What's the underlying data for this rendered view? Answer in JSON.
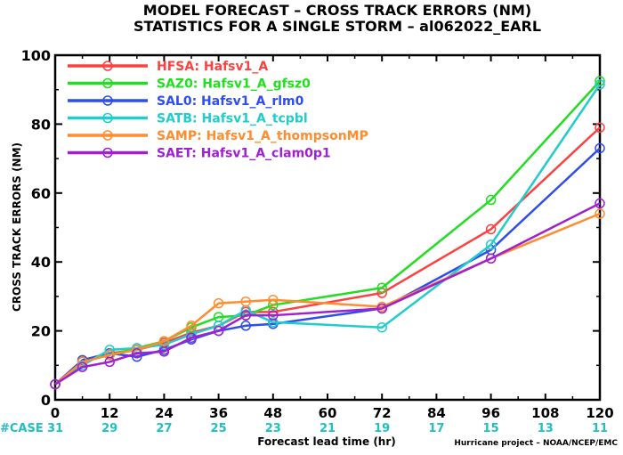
{
  "chart_data": {
    "type": "line",
    "title": "MODEL FORECAST – CROSS TRACK ERRORS (NM)",
    "subtitle": "STATISTICS FOR A SINGLE STORM – al062022_EARL",
    "xlabel": "Forecast lead time (hr)",
    "ylabel": "CROSS TRACK ERRORS (NM)",
    "xlim": [
      0,
      120
    ],
    "ylim": [
      0,
      100
    ],
    "x_ticks": [
      0,
      12,
      24,
      36,
      48,
      60,
      72,
      84,
      96,
      108,
      120
    ],
    "y_ticks": [
      0,
      20,
      40,
      60,
      80,
      100
    ],
    "grid": false,
    "legend_position": "top-left",
    "case_label": "#CASE",
    "case_counts": [
      31,
      29,
      27,
      25,
      23,
      21,
      19,
      17,
      15,
      13,
      11
    ],
    "credit": "Hurricane project – NOAA/NCEP/EMC",
    "x": [
      0,
      6,
      12,
      18,
      24,
      30,
      36,
      42,
      48,
      72,
      96,
      120
    ],
    "series": [
      {
        "name": "HFSA:  Hafsv1_A",
        "color": "#ff4040",
        "values": [
          4.5,
          11.5,
          13.5,
          14.5,
          16.5,
          19.5,
          21.5,
          25.5,
          25.5,
          31,
          49.5,
          79
        ]
      },
      {
        "name": "SAZ0:  Hafsv1_A_gfsz0",
        "color": "#22dd22",
        "values": [
          4.5,
          11,
          13,
          15,
          17,
          21,
          24,
          24.5,
          27.5,
          32.5,
          58,
          92.5
        ]
      },
      {
        "name": "SAL0:  Hafsv1_A_rlm0",
        "color": "#2e4df0",
        "values": [
          4.5,
          11.5,
          13.5,
          12.5,
          14.5,
          17.5,
          20,
          21.5,
          22,
          26.5,
          43.5,
          73
        ]
      },
      {
        "name": "SATB:  Hafsv1_A_tcpbl",
        "color": "#20cccc",
        "values": [
          4.5,
          10,
          14.5,
          15,
          16,
          19,
          21.5,
          26,
          22.5,
          21,
          45,
          91.5
        ]
      },
      {
        "name": "SAMP:  Hafsv1_A_thompsonMP",
        "color": "#ff8c2e",
        "values": [
          4.5,
          11,
          13,
          14.5,
          17,
          21.5,
          28,
          28.5,
          29,
          27,
          41,
          54
        ]
      },
      {
        "name": "SAET:  Hafsv1_A_clam0p1",
        "color": "#a020d0",
        "values": [
          4.5,
          9.5,
          11,
          13.5,
          14,
          18,
          20,
          24.5,
          24.5,
          26.5,
          41,
          57
        ]
      }
    ]
  }
}
